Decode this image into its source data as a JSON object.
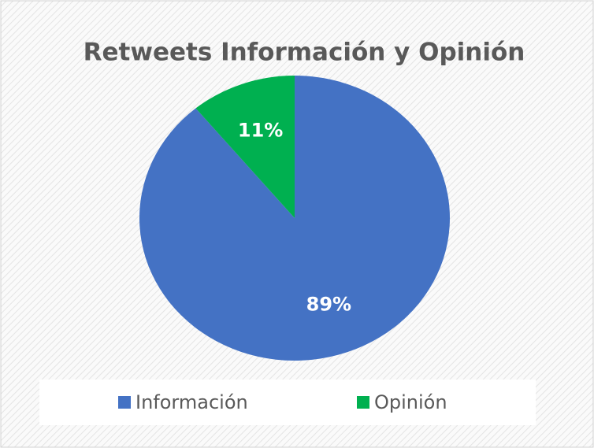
{
  "chart_data": {
    "type": "pie",
    "title": "Retweets Información y Opinión",
    "categories": [
      "Información",
      "Opinión"
    ],
    "values": [
      89,
      11
    ],
    "value_labels": [
      "89%",
      "11%"
    ],
    "colors": [
      "#4472c4",
      "#00b050"
    ],
    "legend": "bottom"
  }
}
